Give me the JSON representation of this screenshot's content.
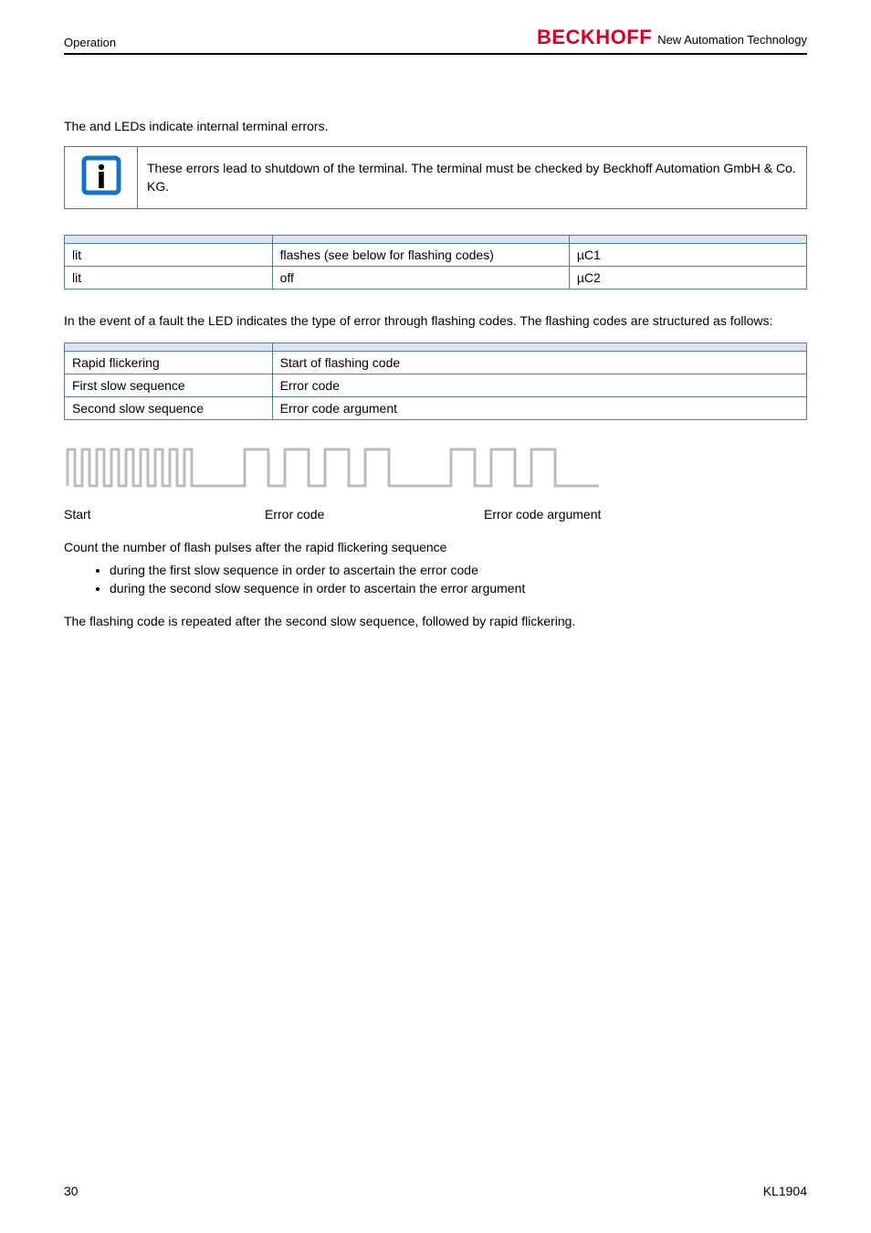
{
  "header": {
    "section": "Operation",
    "brand": "BECKHOFF",
    "brand_tag": "New Automation Technology"
  },
  "intro": {
    "prefix": "The ",
    "mid": " and ",
    "suffix": " LEDs indicate internal terminal errors."
  },
  "callout": {
    "title": "",
    "body": "These errors lead to shutdown of the terminal. The terminal must be checked by Beckhoff Automation GmbH & Co. KG."
  },
  "table1": {
    "headers": [
      "",
      "",
      ""
    ],
    "rows": [
      [
        "lit",
        "flashes (see below for flashing codes)",
        "µC1"
      ],
      [
        "lit",
        "off",
        "µC2"
      ]
    ],
    "col_widths": [
      "28%",
      "40%",
      "32%"
    ]
  },
  "para1": {
    "prefix": "In the event of a fault the ",
    "suffix": " LED indicates the type of error through flashing codes. The flashing codes are structured as follows:"
  },
  "table2": {
    "headers": [
      "",
      ""
    ],
    "rows": [
      [
        "Rapid flickering",
        "Start of flashing code"
      ],
      [
        "First slow sequence",
        "Error code"
      ],
      [
        "Second slow sequence",
        "Error code argument"
      ]
    ],
    "col_widths": [
      "28%",
      "72%"
    ]
  },
  "pulse_diagram": {
    "stroke": "#b9bdc2",
    "stroke_width": 3,
    "labels": [
      "Start",
      "Error code",
      "Error code argument"
    ]
  },
  "count_para": {
    "lead": "Count the number of flash pulses after the rapid flickering sequence",
    "bullets": [
      "during the first slow sequence in order to ascertain the error code",
      "during the second slow sequence in order to ascertain the error argument"
    ]
  },
  "repeat_para": "The flashing code is repeated after the second slow sequence, followed by rapid flickering.",
  "footer": {
    "page": "30",
    "doc": "KL1904"
  },
  "colors": {
    "table_border": "#4a7ab0",
    "table_header_bg": "#dbe4f0",
    "brand": "#d80027",
    "callout_border": "#6e6e6e"
  }
}
